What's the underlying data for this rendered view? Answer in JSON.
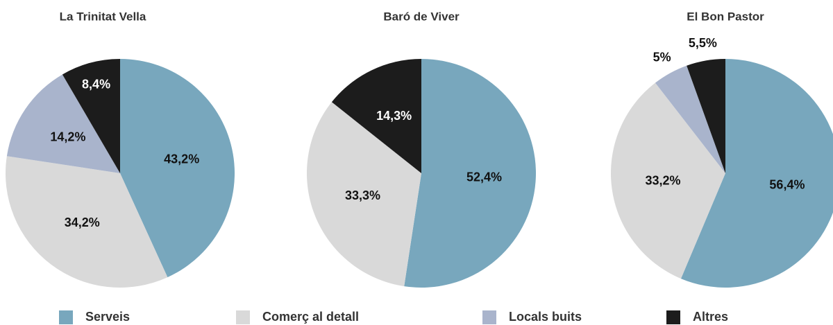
{
  "chart_data": [
    {
      "type": "pie",
      "title": "La Trinitat Vella",
      "categories": [
        "Serveis",
        "Comerç al detall",
        "Locals buits",
        "Altres"
      ],
      "colors": [
        "#78a7bd",
        "#d9d9d9",
        "#a9b4cc",
        "#1c1c1c"
      ],
      "values": [
        43.2,
        34.2,
        14.2,
        8.4
      ],
      "value_labels": [
        "43,2%",
        "34,2%",
        "14,2%",
        "8,4%"
      ]
    },
    {
      "type": "pie",
      "title": "Baró de Viver",
      "categories": [
        "Serveis",
        "Comerç al detall",
        "Altres"
      ],
      "colors": [
        "#78a7bd",
        "#d9d9d9",
        "#1c1c1c"
      ],
      "values": [
        52.4,
        33.3,
        14.3
      ],
      "value_labels": [
        "52,4%",
        "33,3%",
        "14,3%"
      ]
    },
    {
      "type": "pie",
      "title": "El Bon Pastor",
      "categories": [
        "Serveis",
        "Comerç al detall",
        "Locals buits",
        "Altres"
      ],
      "colors": [
        "#78a7bd",
        "#d9d9d9",
        "#a9b4cc",
        "#1c1c1c"
      ],
      "values": [
        56.4,
        33.2,
        5,
        5.5
      ],
      "value_labels": [
        "56,4%",
        "33,2%",
        "5%",
        "5,5%"
      ]
    }
  ]
}
